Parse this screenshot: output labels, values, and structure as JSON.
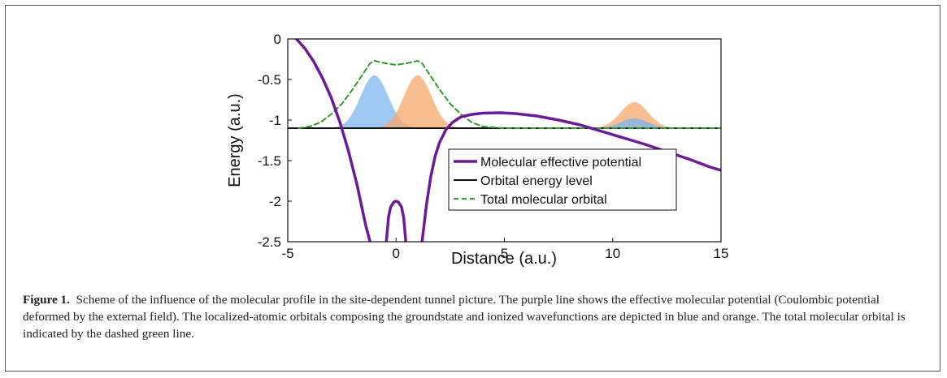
{
  "figure": {
    "label": "Figure 1.",
    "caption": "Scheme of the influence of the molecular profile in the site-dependent tunnel picture. The purple line shows the effective molecular potential (Coulombic potential deformed by the external field). The localized-atomic orbitals composing the groundstate and ionized wavefunctions are depicted in blue and orange. The total molecular orbital is indicated by the dashed green line."
  },
  "chart_data": {
    "type": "line",
    "xlabel": "Distance (a.u.)",
    "ylabel": "Energy (a.u.)",
    "xlim": [
      -5,
      15
    ],
    "ylim": [
      -2.5,
      0
    ],
    "x_ticks": [
      "-5",
      "0",
      "5",
      "10",
      "15"
    ],
    "y_ticks": [
      "0",
      "-0.5",
      "-1",
      "-1.5",
      "-2",
      "-2.5"
    ],
    "grid": false,
    "legend_position": "lower-right",
    "colors": {
      "potential": "#6a1b9a",
      "level": "#111111",
      "total": "#2a9d2a",
      "blue": "#7fb6ee",
      "orange": "#f5a86a"
    },
    "series": [
      {
        "name": "Molecular effective potential",
        "style": "solid-thick",
        "x": [
          -4.6,
          -4.2,
          -3.8,
          -3.4,
          -3.0,
          -2.6,
          -2.2,
          -1.8,
          -1.6,
          -1.4,
          -1.2,
          -1.05,
          -0.45,
          -0.35,
          -0.25,
          -0.1,
          0.0,
          0.1,
          0.25,
          0.35,
          0.45,
          1.05,
          1.2,
          1.4,
          1.6,
          1.8,
          2.0,
          2.3,
          2.6,
          3.0,
          3.5,
          4.0,
          4.8,
          5.5,
          6.5,
          7.5,
          8.5,
          9.5,
          10.5,
          11.5,
          12.5,
          13.5,
          14.5,
          15.0
        ],
        "y": [
          0.0,
          -0.12,
          -0.28,
          -0.48,
          -0.72,
          -1.02,
          -1.38,
          -1.8,
          -2.05,
          -2.3,
          -2.5,
          null,
          -2.5,
          -2.2,
          -2.07,
          -2.01,
          -2.0,
          -2.01,
          -2.07,
          -2.2,
          -2.5,
          null,
          -2.5,
          -2.05,
          -1.7,
          -1.45,
          -1.28,
          -1.12,
          -1.03,
          -0.96,
          -0.93,
          -0.915,
          -0.91,
          -0.92,
          -0.95,
          -1.0,
          -1.06,
          -1.14,
          -1.22,
          -1.3,
          -1.39,
          -1.48,
          -1.58,
          -1.62
        ]
      },
      {
        "name": "Orbital energy level",
        "style": "solid",
        "x": [
          -5,
          15
        ],
        "y": [
          -1.1,
          -1.1
        ]
      },
      {
        "name": "Total molecular orbital",
        "style": "dashed",
        "x": [
          -4.5,
          -4.0,
          -3.5,
          -3.0,
          -2.5,
          -2.0,
          -1.5,
          -1.2,
          -1.0,
          -0.5,
          0.0,
          0.5,
          1.0,
          1.2,
          1.5,
          2.0,
          2.5,
          3.0,
          3.5,
          4.0,
          5.0,
          15.0
        ],
        "y": [
          -1.1,
          -1.08,
          -1.03,
          -0.93,
          -0.8,
          -0.62,
          -0.42,
          -0.3,
          -0.27,
          -0.3,
          -0.32,
          -0.3,
          -0.27,
          -0.3,
          -0.42,
          -0.62,
          -0.8,
          -0.93,
          -1.03,
          -1.08,
          -1.1,
          -1.1
        ]
      }
    ],
    "filled_orbitals": [
      {
        "color": "blue",
        "center": -1.0,
        "peak": -0.45,
        "width": 0.9
      },
      {
        "color": "orange",
        "center": 1.0,
        "peak": -0.45,
        "width": 0.9
      },
      {
        "color": "orange",
        "center": 11.0,
        "peak": -0.78,
        "width": 0.9
      },
      {
        "color": "blue",
        "center": 11.0,
        "peak": -0.98,
        "width": 0.9
      }
    ]
  }
}
